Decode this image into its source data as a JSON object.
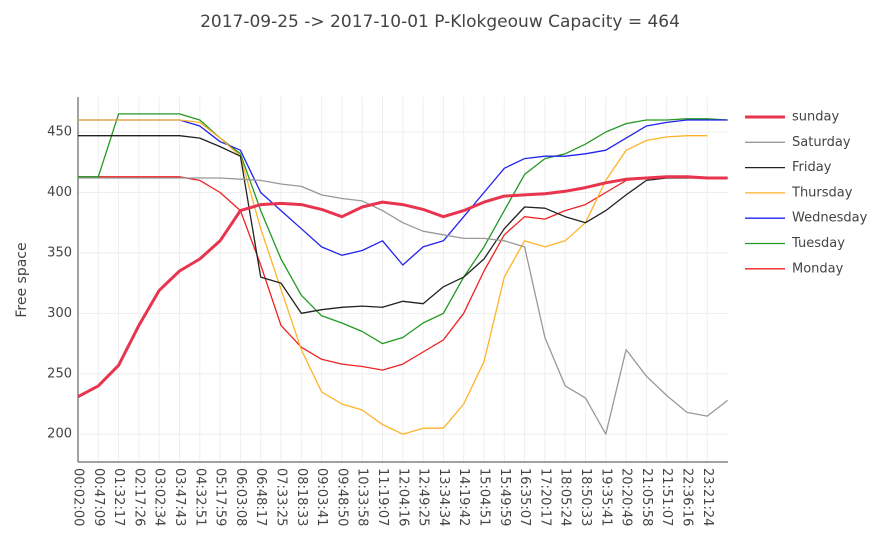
{
  "chart_data": {
    "type": "line",
    "title": "2017-09-25 -> 2017-10-01  P-Klokgeouw   Capacity = 464",
    "y_label": "Free space",
    "categories": [
      "00:02:00",
      "00:47:09",
      "01:32:17",
      "02:17:26",
      "03:02:34",
      "03:47:43",
      "04:32:51",
      "05:17:59",
      "06:03:08",
      "06:48:17",
      "07:33:25",
      "08:18:33",
      "09:03:41",
      "09:48:50",
      "10:33:58",
      "11:19:07",
      "12:04:16",
      "12:49:25",
      "13:34:34",
      "14:19:42",
      "15:04:51",
      "15:49:59",
      "16:35:07",
      "17:20:17",
      "18:05:24",
      "18:50:33",
      "19:35:41",
      "20:20:49",
      "21:05:58",
      "21:51:07",
      "22:36:16",
      "23:21:24",
      null
    ],
    "series": [
      {
        "name": "sunday",
        "color": "#e8344e",
        "line_width": 3,
        "values": [
          231,
          240,
          257,
          290,
          319,
          335,
          345,
          360,
          385,
          390,
          391,
          390,
          386,
          380,
          388,
          392,
          390,
          386,
          380,
          385,
          392,
          397,
          398,
          399,
          401,
          404,
          408,
          411,
          412,
          413,
          413,
          412,
          412
        ]
      },
      {
        "name": "Saturday",
        "color": "#999999",
        "line_width": 1.3,
        "values": [
          412,
          412,
          412,
          412,
          412,
          412,
          412,
          412,
          411,
          410,
          407,
          405,
          398,
          395,
          393,
          385,
          375,
          368,
          365,
          362,
          362,
          360,
          355,
          280,
          240,
          230,
          200,
          270,
          248,
          232,
          218,
          215,
          228
        ]
      },
      {
        "name": "Friday",
        "color": "#222222",
        "line_width": 1.3,
        "values": [
          447,
          447,
          447,
          447,
          447,
          447,
          445,
          438,
          430,
          330,
          325,
          300,
          303,
          305,
          306,
          305,
          310,
          308,
          322,
          330,
          345,
          370,
          388,
          387,
          380,
          375,
          385,
          398,
          410,
          412,
          412,
          412,
          412
        ]
      },
      {
        "name": "Thursday",
        "color": "#ffb32a",
        "line_width": 1.3,
        "values": [
          460,
          460,
          460,
          460,
          460,
          460,
          458,
          445,
          430,
          370,
          320,
          270,
          235,
          225,
          220,
          208,
          200,
          205,
          205,
          225,
          260,
          330,
          360,
          355,
          360,
          375,
          410,
          435,
          443,
          446,
          447,
          447,
          null
        ]
      },
      {
        "name": "Wednesday",
        "color": "#2222ee",
        "line_width": 1.3,
        "values": [
          460,
          460,
          460,
          460,
          460,
          460,
          455,
          442,
          435,
          400,
          385,
          370,
          355,
          348,
          352,
          360,
          340,
          355,
          360,
          380,
          400,
          420,
          428,
          430,
          430,
          432,
          435,
          445,
          455,
          458,
          460,
          460,
          460
        ]
      },
      {
        "name": "Tuesday",
        "color": "#229922",
        "line_width": 1.3,
        "values": [
          413,
          413,
          465,
          465,
          465,
          465,
          460,
          445,
          432,
          385,
          345,
          315,
          298,
          292,
          285,
          275,
          280,
          292,
          300,
          330,
          355,
          385,
          415,
          428,
          432,
          440,
          450,
          457,
          460,
          460,
          461,
          461,
          460
        ]
      },
      {
        "name": "Monday",
        "color": "#ee2222",
        "line_width": 1.3,
        "values": [
          413,
          413,
          413,
          413,
          413,
          413,
          410,
          400,
          385,
          340,
          290,
          272,
          262,
          258,
          256,
          253,
          258,
          268,
          278,
          300,
          335,
          365,
          380,
          378,
          385,
          390,
          400,
          410,
          412,
          413,
          413,
          412,
          412
        ]
      }
    ],
    "ylim": [
      177,
      479
    ],
    "yticks": [
      200,
      250,
      300,
      350,
      400,
      450
    ],
    "grid": true,
    "legend": "right"
  }
}
